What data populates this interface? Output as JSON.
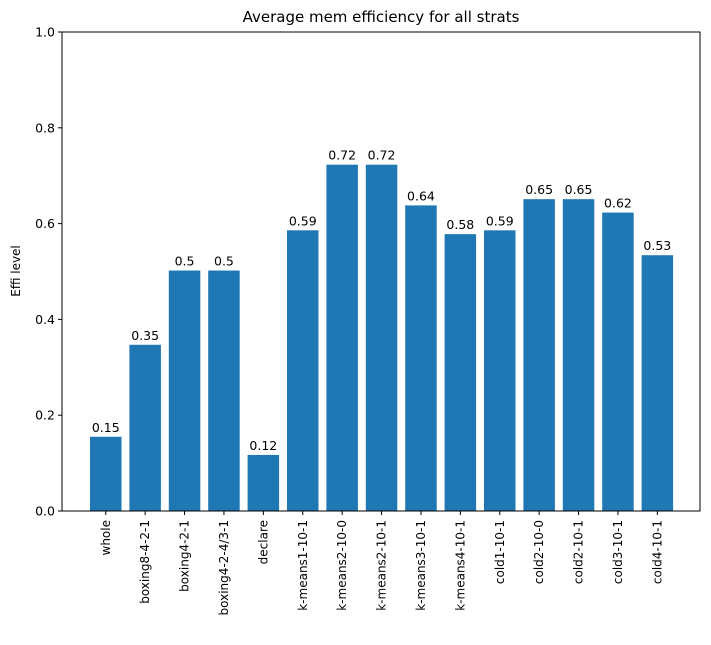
{
  "chart_data": {
    "type": "bar",
    "title": "Average mem efficiency for all strats",
    "xlabel": "",
    "ylabel": "Effi level",
    "ylim": [
      0,
      1.0
    ],
    "yticks": [
      "0.0",
      "0.2",
      "0.4",
      "0.6",
      "0.8",
      "1.0"
    ],
    "grid": false,
    "legend": "none",
    "bar_color": "#1f77b4",
    "categories": [
      "whole",
      "boxing8-4-2-1",
      "boxing4-2-1",
      "boxing4-2-4/3-1",
      "declare",
      "k-means1-10-1",
      "k-means2-10-0",
      "k-means2-10-1",
      "k-means3-10-1",
      "k-means4-10-1",
      "cold1-10-1",
      "cold2-10-0",
      "cold2-10-1",
      "cold3-10-1",
      "cold4-10-1"
    ],
    "values": [
      0.155,
      0.347,
      0.502,
      0.502,
      0.117,
      0.586,
      0.723,
      0.723,
      0.638,
      0.578,
      0.586,
      0.651,
      0.651,
      0.623,
      0.534
    ],
    "data_labels": [
      "0.15",
      "0.35",
      "0.5",
      "0.5",
      "0.12",
      "0.59",
      "0.72",
      "0.72",
      "0.64",
      "0.58",
      "0.59",
      "0.65",
      "0.65",
      "0.62",
      "0.53"
    ]
  }
}
